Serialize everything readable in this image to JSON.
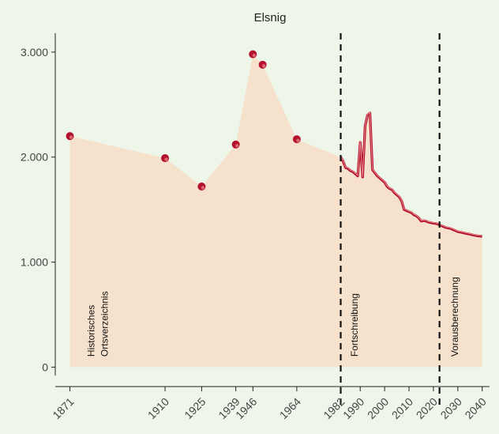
{
  "chart_data": {
    "type": "area",
    "title": "Elsnig",
    "xlabel": "",
    "ylabel": "",
    "xlim": [
      1865,
      2043
    ],
    "ylim": [
      -80,
      3180
    ],
    "yticks": [
      0,
      1000,
      2000,
      3000
    ],
    "ytick_labels": [
      "0",
      "1.000",
      "2.000",
      "3.000"
    ],
    "xticks": [
      1871,
      1910,
      1925,
      1939,
      1946,
      1964,
      1982,
      1990,
      2000,
      2010,
      2020,
      2030,
      2040
    ],
    "xtick_labels": [
      "1871",
      "1910",
      "1925",
      "1939",
      "1946",
      "1964",
      "1982",
      "1990",
      "2000",
      "2010",
      "2020",
      "2030",
      "2040"
    ],
    "grid": false,
    "colors": {
      "area_fill": "#f6e2cc",
      "points": "#b5102e",
      "line": "#b5102e",
      "line_highlight": "#e88f8f",
      "background": "#eef6ea"
    },
    "historical_points": {
      "x": [
        1871,
        1910,
        1925,
        1939,
        1946,
        1950,
        1964
      ],
      "y": [
        2200,
        1990,
        1720,
        2120,
        2980,
        2880,
        2170
      ]
    },
    "continuous_series": {
      "x": [
        1982,
        1983,
        1984,
        1985,
        1986,
        1987,
        1988,
        1989,
        1990,
        1991,
        1992,
        1993,
        1994,
        1995,
        1996,
        1997,
        1998,
        1999,
        2000,
        2001,
        2002,
        2003,
        2004,
        2005,
        2006,
        2007,
        2008,
        2009,
        2010,
        2011,
        2012,
        2013,
        2014,
        2015,
        2016,
        2017,
        2018,
        2019,
        2020,
        2021,
        2022,
        2023,
        2024,
        2025,
        2026,
        2027,
        2028,
        2029,
        2030,
        2031,
        2032,
        2033,
        2034,
        2035,
        2036,
        2037,
        2038,
        2039,
        2040
      ],
      "y": [
        2000,
        1960,
        1900,
        1890,
        1870,
        1860,
        1840,
        1820,
        2140,
        1810,
        2300,
        2400,
        2420,
        1880,
        1850,
        1820,
        1800,
        1780,
        1760,
        1720,
        1700,
        1690,
        1660,
        1640,
        1620,
        1580,
        1500,
        1490,
        1480,
        1470,
        1450,
        1440,
        1420,
        1390,
        1395,
        1390,
        1380,
        1375,
        1370,
        1368,
        1360,
        1350,
        1340,
        1330,
        1325,
        1320,
        1310,
        1300,
        1290,
        1285,
        1280,
        1275,
        1270,
        1265,
        1260,
        1255,
        1250,
        1248,
        1245
      ]
    },
    "vertical_lines": [
      1982,
      2022.5
    ],
    "annotations": [
      {
        "text": [
          "Historisches",
          "Ortsverzeichnis"
        ],
        "x": 1881,
        "y": 100
      },
      {
        "text": [
          "Fortschreibung"
        ],
        "x": 1989,
        "y": 100
      },
      {
        "text": [
          "Vorausberechnung"
        ],
        "x": 2030,
        "y": 100
      }
    ]
  }
}
